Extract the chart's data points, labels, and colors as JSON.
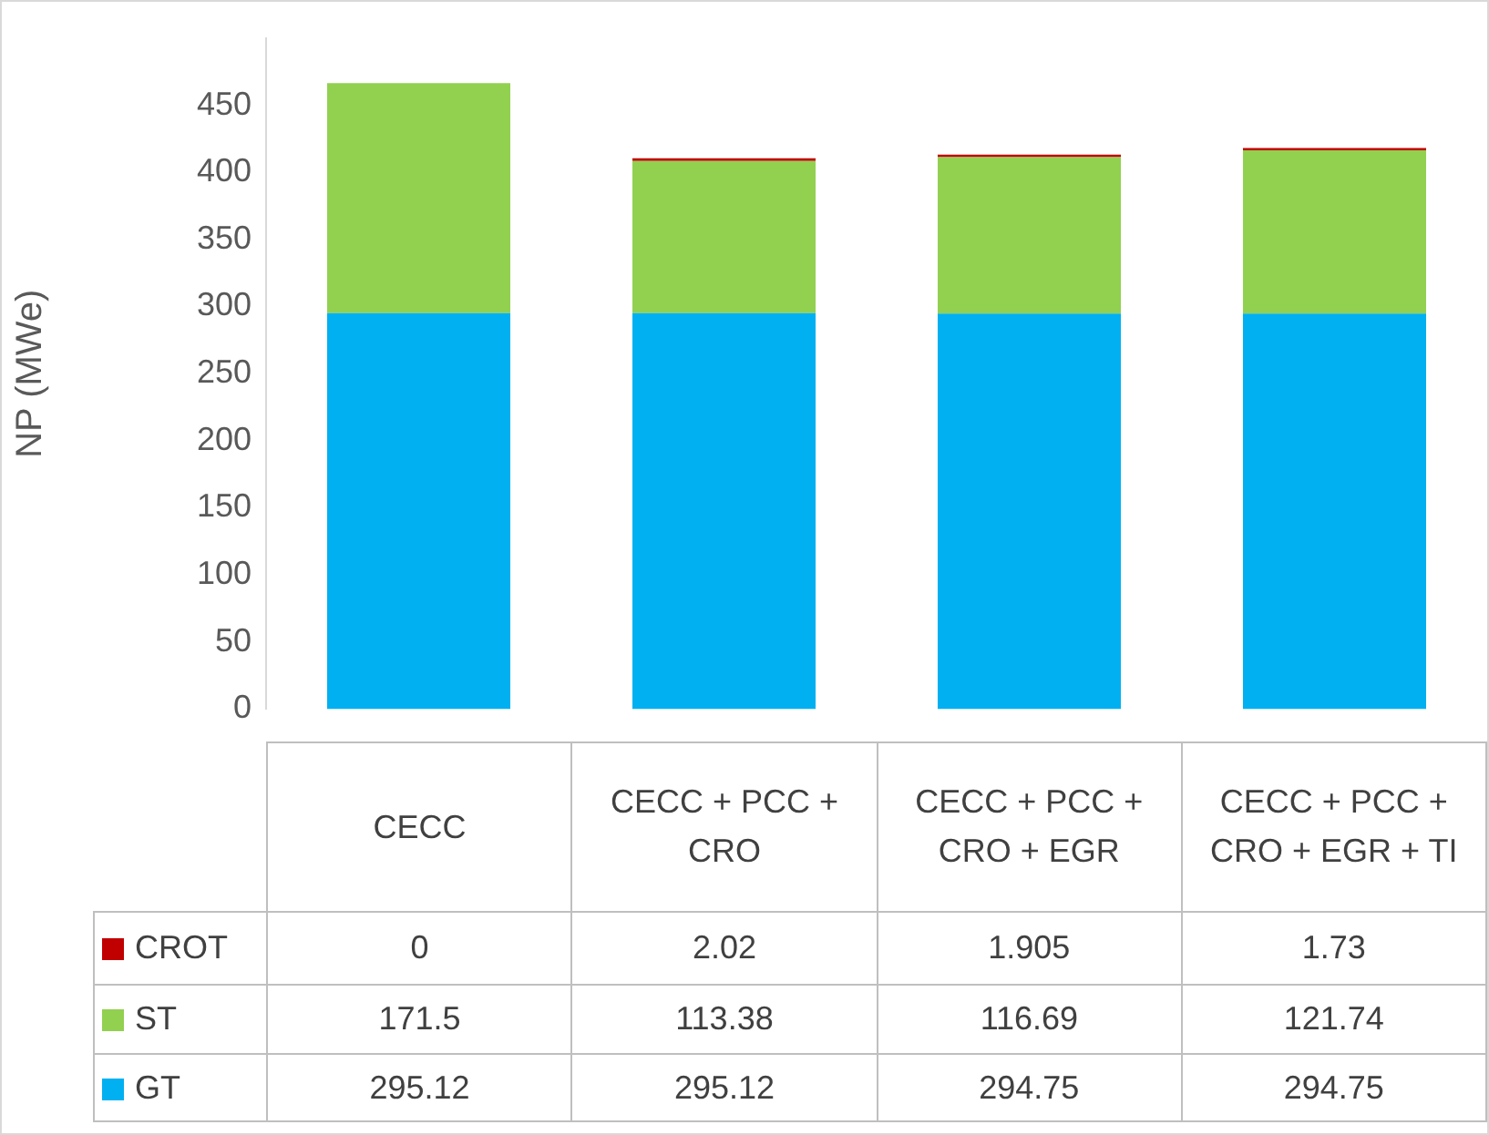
{
  "chart_data": {
    "type": "bar",
    "stacked": true,
    "ylabel": "NP (MWe)",
    "categories": [
      "CECC",
      "CECC + PCC + CRO",
      "CECC + PCC + CRO + EGR",
      "CECC + PCC + CRO + EGR + TI"
    ],
    "series": [
      {
        "name": "GT",
        "color": "#00b0f0",
        "values": [
          295.12,
          295.12,
          294.75,
          294.75
        ]
      },
      {
        "name": "ST",
        "color": "#92d050",
        "values": [
          171.5,
          113.38,
          116.69,
          121.74
        ]
      },
      {
        "name": "CROT",
        "color": "#c00000",
        "values": [
          0,
          2.02,
          1.905,
          1.73
        ]
      }
    ],
    "ylim": [
      0,
      500
    ],
    "yticks": [
      0,
      50,
      100,
      150,
      200,
      250,
      300,
      350,
      400,
      450
    ],
    "grid": false,
    "legend": "bottom",
    "data_labels": true
  }
}
